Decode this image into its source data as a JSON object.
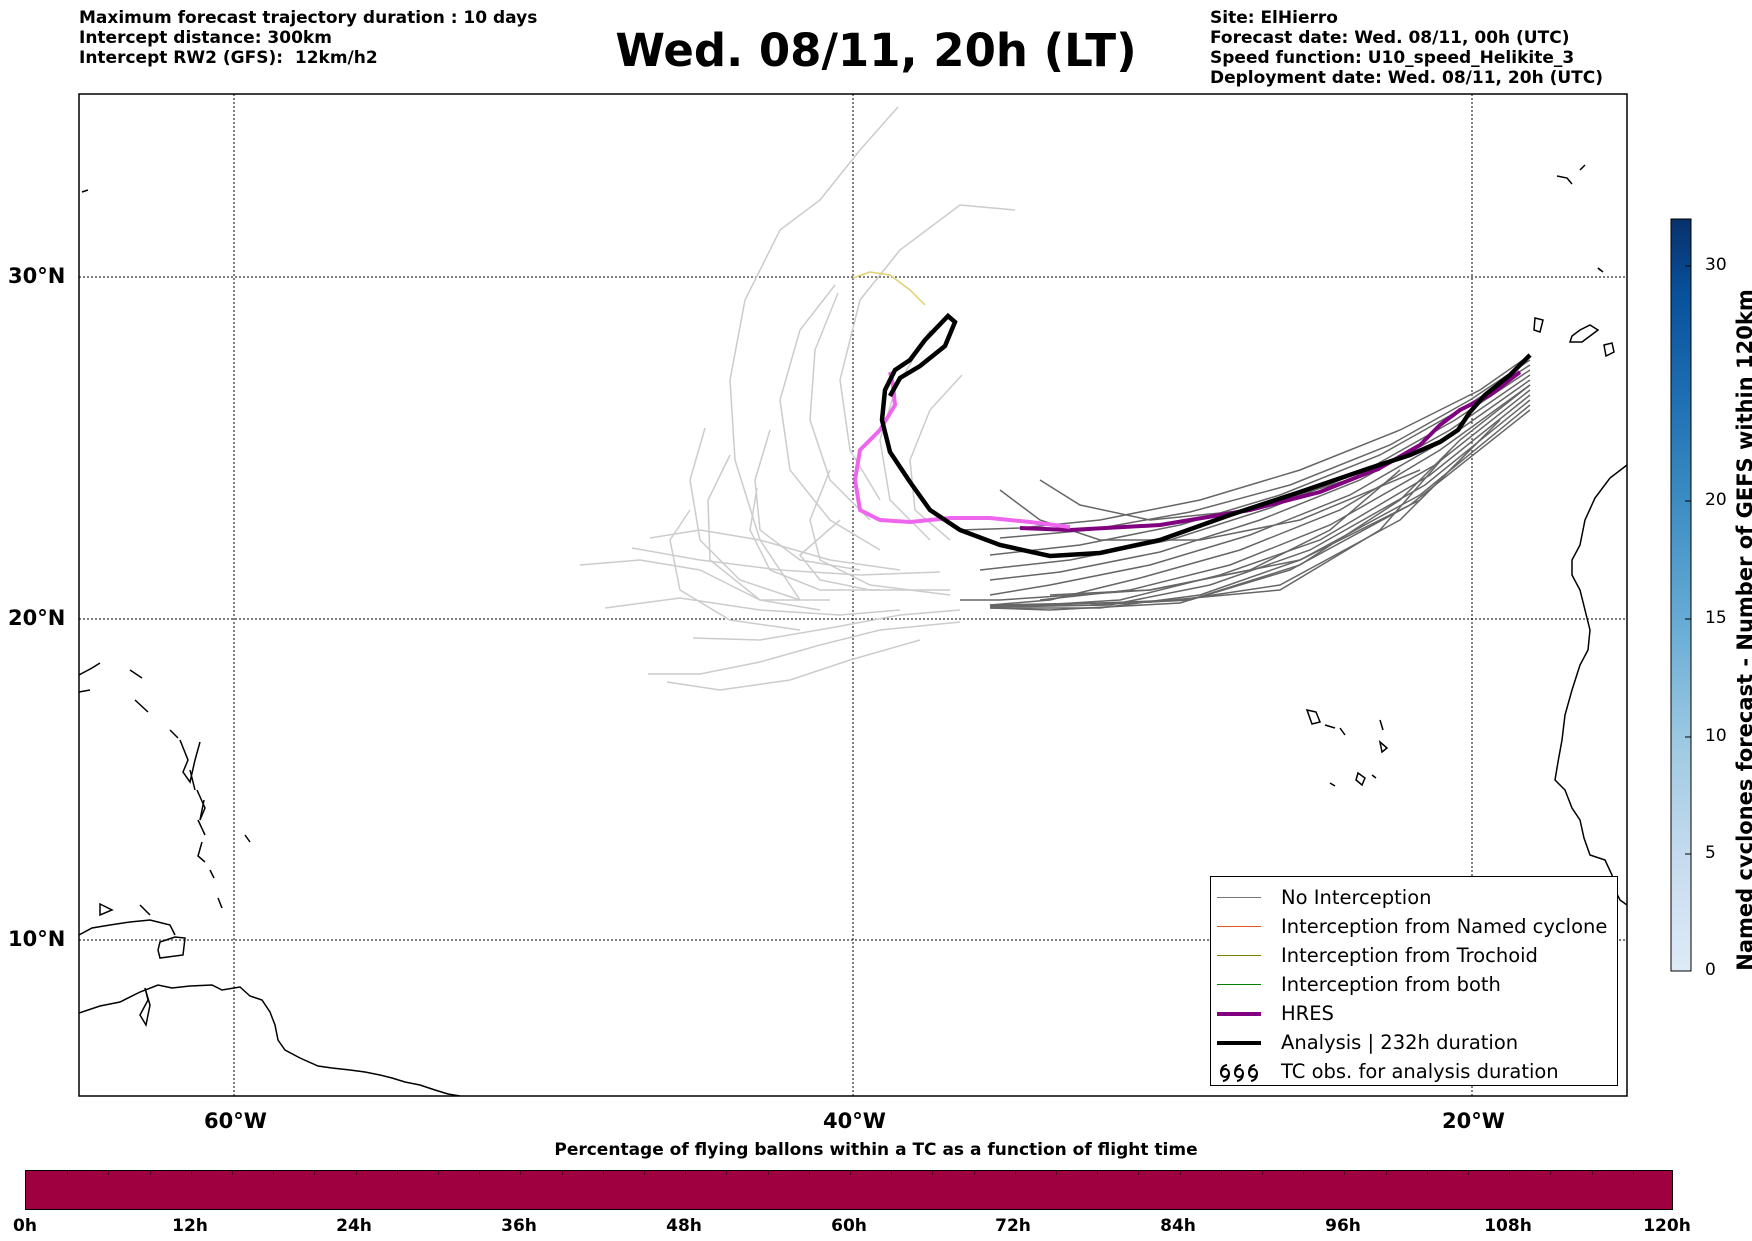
{
  "header_left": [
    "Maximum forecast trajectory duration : 10 days",
    "Intercept distance: 300km",
    "Intercept RW2 (GFS):  12km/h2"
  ],
  "title": "Wed. 08/11, 20h (LT)",
  "header_right": [
    "Site: ElHierro",
    "Forecast date: Wed. 08/11, 00h (UTC)",
    "Speed function: U10_speed_Helikite_3",
    "Deployment date: Wed. 08/11, 20h (UTC)"
  ],
  "map": {
    "lat_labels": [
      "30°N",
      "20°N",
      "10°N"
    ],
    "lon_labels": [
      "60°W",
      "40°W",
      "20°W"
    ],
    "lat_gridlines": [
      30,
      20,
      10
    ],
    "lon_gridlines": [
      -60,
      -40,
      -20
    ],
    "extent": {
      "lon_min": -65,
      "lon_max": -15,
      "lat_min": 5.4,
      "lat_max": 34.6
    },
    "colors": {
      "ensemble_near": "#666666",
      "ensemble_far": "#cccccc",
      "hres": "#800080",
      "hres_light": "#ee66ee",
      "analysis": "#000000",
      "trochoid": "#e0d070"
    }
  },
  "legend": {
    "items": [
      {
        "label": "No Interception",
        "color": "#777777",
        "style": "thin"
      },
      {
        "label": "Interception from Named cyclone",
        "color": "#e8541e",
        "style": "thin"
      },
      {
        "label": "Interception from Trochoid",
        "color": "#808000",
        "style": "thin"
      },
      {
        "label": "Interception from both",
        "color": "#008000",
        "style": "thin"
      },
      {
        "label": "HRES",
        "color": "#800080",
        "style": "thick"
      },
      {
        "label": "Analysis | 232h duration",
        "color": "#000000",
        "style": "thick"
      },
      {
        "label": "TC obs. for analysis duration",
        "color": "#000000",
        "style": "hurricane-symbols"
      }
    ]
  },
  "colorbar": {
    "label": "Named cyclones forecast - Number of GEFS within 120km",
    "min": 0,
    "max": 33,
    "ticks": [
      "0",
      "5",
      "10",
      "15",
      "20",
      "30"
    ],
    "tick_values": [
      0,
      5,
      10,
      15,
      20,
      30
    ],
    "colors": [
      "#deebf7",
      "#c6dbef",
      "#9ecae1",
      "#6baed6",
      "#4292c6",
      "#2171b5",
      "#08519c",
      "#08306b"
    ]
  },
  "bottom_bar": {
    "title": "Percentage of flying ballons within a TC as a function of flight time",
    "ticks": [
      "0h",
      "12h",
      "24h",
      "36h",
      "48h",
      "60h",
      "72h",
      "84h",
      "96h",
      "108h",
      "120h"
    ],
    "fill_color": "#9e0040"
  }
}
